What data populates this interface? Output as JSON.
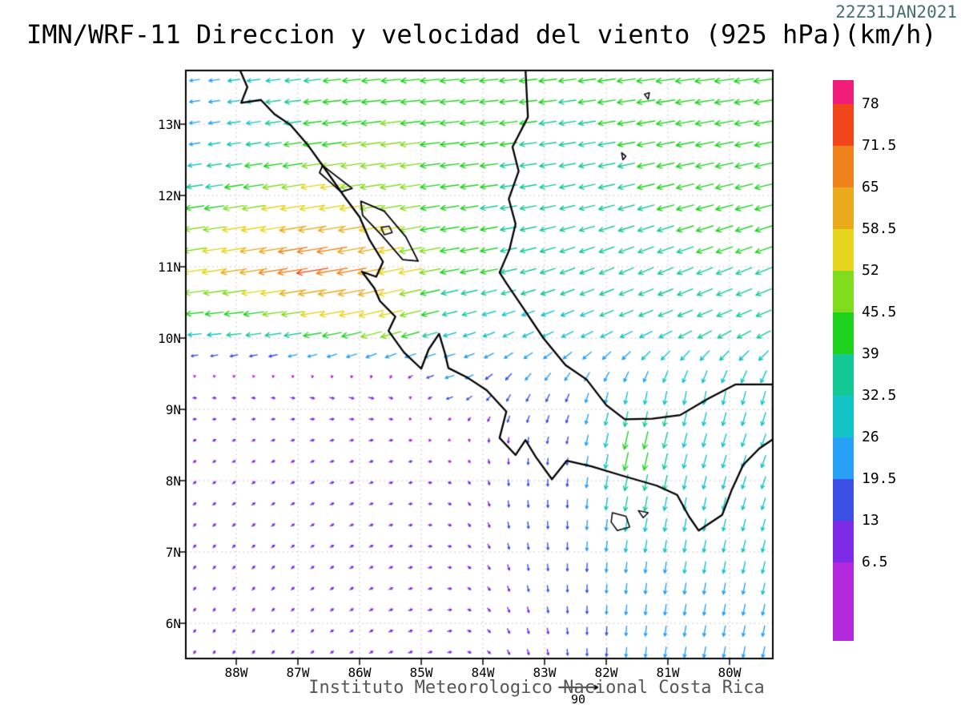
{
  "header": {
    "title": "IMN/WRF-11 Direccion y velocidad del viento (925 hPa)(km/h)",
    "timestamp": "22Z31JAN2021"
  },
  "footer": {
    "credit": "Instituto Meteorologico Nacional Costa Rica",
    "reference_vector_label": "90"
  },
  "chart_data": {
    "type": "vector_field_map",
    "title": "IMN/WRF-11 Direccion y velocidad del viento (925 hPa)(km/h)",
    "model": "IMN/WRF-11",
    "variable": "Direccion y velocidad del viento",
    "level": "925 hPa",
    "units": "km/h",
    "valid_time": "22Z31JAN2021",
    "lon_range": [
      -88.82,
      -79.3
    ],
    "lat_range": [
      5.51,
      13.75
    ],
    "reference_vector_kmh": 90,
    "lat_ticks": [
      {
        "label": "13N",
        "lat": 13
      },
      {
        "label": "12N",
        "lat": 12
      },
      {
        "label": "11N",
        "lat": 11
      },
      {
        "label": "10N",
        "lat": 10
      },
      {
        "label": "9N",
        "lat": 9
      },
      {
        "label": "8N",
        "lat": 8
      },
      {
        "label": "7N",
        "lat": 7
      },
      {
        "label": "6N",
        "lat": 6
      }
    ],
    "lon_ticks": [
      {
        "label": "88W",
        "lon": -88
      },
      {
        "label": "87W",
        "lon": -87
      },
      {
        "label": "86W",
        "lon": -86
      },
      {
        "label": "85W",
        "lon": -85
      },
      {
        "label": "84W",
        "lon": -84
      },
      {
        "label": "83W",
        "lon": -83
      },
      {
        "label": "82W",
        "lon": -82
      },
      {
        "label": "81W",
        "lon": -81
      },
      {
        "label": "80W",
        "lon": -80
      }
    ],
    "colorbar": {
      "position": "right",
      "levels": [
        6.5,
        13,
        19.5,
        26,
        32.5,
        39,
        45.5,
        52,
        58.5,
        65,
        71.5,
        78
      ],
      "tick_labels_top_to_bottom": [
        "78",
        "71.5",
        "65",
        "58.5",
        "52",
        "45.5",
        "39",
        "32.5",
        "26",
        "19.5",
        "13",
        "6.5"
      ],
      "colors": [
        "#b428dc",
        "#7d2be6",
        "#3c50e6",
        "#28a0f5",
        "#14c3c8",
        "#14c896",
        "#1ed21e",
        "#82dc1e",
        "#e6d41e",
        "#eaaa1e",
        "#f0821e",
        "#f04619",
        "#f01e78"
      ]
    },
    "wind_grid": {
      "note": "u,v in km/h, rows ordered south to north matching lats[]",
      "lons": [
        -88.6,
        -87.6,
        -86.6,
        -85.6,
        -84.6,
        -83.6,
        -82.6,
        -81.6,
        -80.6,
        -79.6
      ],
      "lats": [
        5.9,
        6.75,
        7.6,
        8.45,
        9.3,
        10.15,
        11.0,
        11.85,
        12.7,
        13.55
      ],
      "u": [
        [
          4,
          5,
          6,
          8,
          9,
          5,
          1,
          -2,
          -4,
          -5
        ],
        [
          5,
          6,
          7,
          8,
          8,
          4,
          0,
          -3,
          -4,
          -6
        ],
        [
          6,
          7,
          8,
          8,
          7,
          2,
          0,
          -6,
          -5,
          -8
        ],
        [
          6,
          7,
          8,
          8,
          6,
          0,
          -3,
          -10,
          -8,
          -10
        ],
        [
          8,
          8,
          10,
          12,
          -18,
          -10,
          -8,
          -5,
          -5,
          -8
        ],
        [
          -35,
          -40,
          -48,
          -55,
          -30,
          -26,
          -28,
          -30,
          -33,
          -33
        ],
        [
          -54,
          -64,
          -74,
          -58,
          -44,
          -37,
          -33,
          -33,
          -36,
          -36
        ],
        [
          -42,
          -51,
          -57,
          -49,
          -41,
          -37,
          -34,
          -37,
          -39,
          -39
        ],
        [
          -24,
          -35,
          -44,
          -47,
          -44,
          -39,
          -37,
          -39,
          -41,
          -41
        ],
        [
          -22,
          -30,
          -39,
          -43,
          -44,
          -41,
          -39,
          -41,
          -44,
          -44
        ]
      ],
      "v": [
        [
          6,
          6,
          5,
          4,
          2,
          -10,
          -14,
          -22,
          -24,
          -24
        ],
        [
          6,
          6,
          5,
          4,
          0,
          -12,
          -16,
          -24,
          -26,
          -26
        ],
        [
          5,
          5,
          4,
          3,
          -2,
          -14,
          -18,
          -32,
          -28,
          -26
        ],
        [
          4,
          4,
          3,
          2,
          0,
          -12,
          -15,
          -45,
          -30,
          -28
        ],
        [
          -2,
          -2,
          -3,
          -4,
          -5,
          -15,
          -18,
          -25,
          -30,
          -30
        ],
        [
          -3,
          -5,
          -8,
          -14,
          -8,
          -10,
          -12,
          -12,
          -14,
          -14
        ],
        [
          -8,
          -10,
          -12,
          -12,
          -8,
          -8,
          -12,
          -14,
          -14,
          -14
        ],
        [
          -6,
          -8,
          -9,
          -8,
          -6,
          -6,
          -8,
          -10,
          -10,
          -10
        ],
        [
          -4,
          -5,
          -6,
          -6,
          -5,
          -5,
          -6,
          -7,
          -8,
          -8
        ],
        [
          -3,
          -4,
          -4,
          -4,
          -4,
          -4,
          -5,
          -6,
          -6,
          -6
        ]
      ]
    },
    "coastline": [
      [
        -87.95,
        13.78
      ],
      [
        -87.82,
        13.52
      ],
      [
        -87.92,
        13.3
      ],
      [
        -87.6,
        13.34
      ],
      [
        -87.38,
        13.14
      ],
      [
        -87.12,
        12.99
      ],
      [
        -86.85,
        12.72
      ],
      [
        -86.55,
        12.36
      ],
      [
        -86.26,
        12.0
      ],
      [
        -86.0,
        11.7
      ],
      [
        -85.84,
        11.38
      ],
      [
        -85.62,
        11.07
      ],
      [
        -85.73,
        10.86
      ],
      [
        -85.96,
        10.93
      ],
      [
        -85.76,
        10.7
      ],
      [
        -85.67,
        10.52
      ],
      [
        -85.42,
        10.3
      ],
      [
        -85.53,
        10.1
      ],
      [
        -85.28,
        9.8
      ],
      [
        -85.0,
        9.57
      ],
      [
        -84.88,
        9.84
      ],
      [
        -84.71,
        10.06
      ],
      [
        -84.62,
        9.8
      ],
      [
        -84.56,
        9.58
      ],
      [
        -84.24,
        9.44
      ],
      [
        -83.94,
        9.27
      ],
      [
        -83.62,
        8.97
      ],
      [
        -83.73,
        8.6
      ],
      [
        -83.47,
        8.36
      ],
      [
        -83.31,
        8.57
      ],
      [
        -83.14,
        8.33
      ],
      [
        -82.88,
        8.02
      ],
      [
        -82.64,
        8.28
      ],
      [
        -82.24,
        8.2
      ],
      [
        -81.74,
        8.07
      ],
      [
        -81.18,
        7.93
      ],
      [
        -80.85,
        7.8
      ],
      [
        -80.66,
        7.5
      ],
      [
        -80.5,
        7.3
      ],
      [
        -80.12,
        7.52
      ],
      [
        -79.96,
        7.88
      ],
      [
        -79.78,
        8.22
      ],
      [
        -79.52,
        8.45
      ],
      [
        -79.3,
        8.58
      ],
      [
        -79.3,
        9.35
      ],
      [
        -79.9,
        9.35
      ],
      [
        -80.35,
        9.15
      ],
      [
        -80.8,
        8.92
      ],
      [
        -81.25,
        8.87
      ],
      [
        -81.7,
        8.86
      ],
      [
        -82.0,
        9.06
      ],
      [
        -82.32,
        9.42
      ],
      [
        -82.66,
        9.62
      ],
      [
        -83.02,
        10.0
      ],
      [
        -83.36,
        10.44
      ],
      [
        -83.62,
        10.77
      ],
      [
        -83.73,
        10.92
      ],
      [
        -83.57,
        11.24
      ],
      [
        -83.47,
        11.6
      ],
      [
        -83.58,
        11.95
      ],
      [
        -83.42,
        12.34
      ],
      [
        -83.52,
        12.68
      ],
      [
        -83.27,
        13.1
      ],
      [
        -83.31,
        13.78
      ]
    ],
    "lakes": [
      [
        [
          -85.98,
          11.92
        ],
        [
          -85.6,
          11.78
        ],
        [
          -85.25,
          11.42
        ],
        [
          -85.05,
          11.08
        ],
        [
          -85.3,
          11.1
        ],
        [
          -85.65,
          11.45
        ],
        [
          -85.95,
          11.72
        ]
      ],
      [
        [
          -86.6,
          12.42
        ],
        [
          -86.3,
          12.22
        ],
        [
          -86.12,
          12.1
        ],
        [
          -86.3,
          12.05
        ],
        [
          -86.52,
          12.22
        ],
        [
          -86.65,
          12.32
        ]
      ]
    ],
    "islands": [
      [
        [
          -85.65,
          11.55
        ],
        [
          -85.52,
          11.57
        ],
        [
          -85.47,
          11.48
        ],
        [
          -85.6,
          11.45
        ]
      ],
      [
        [
          -81.9,
          7.55
        ],
        [
          -81.68,
          7.5
        ],
        [
          -81.62,
          7.35
        ],
        [
          -81.82,
          7.3
        ],
        [
          -81.92,
          7.42
        ]
      ],
      [
        [
          -81.48,
          7.58
        ],
        [
          -81.32,
          7.55
        ],
        [
          -81.4,
          7.48
        ]
      ],
      [
        [
          -81.38,
          13.42
        ],
        [
          -81.3,
          13.44
        ],
        [
          -81.32,
          13.35
        ]
      ],
      [
        [
          -81.75,
          12.6
        ],
        [
          -81.68,
          12.55
        ],
        [
          -81.73,
          12.5
        ]
      ]
    ]
  }
}
